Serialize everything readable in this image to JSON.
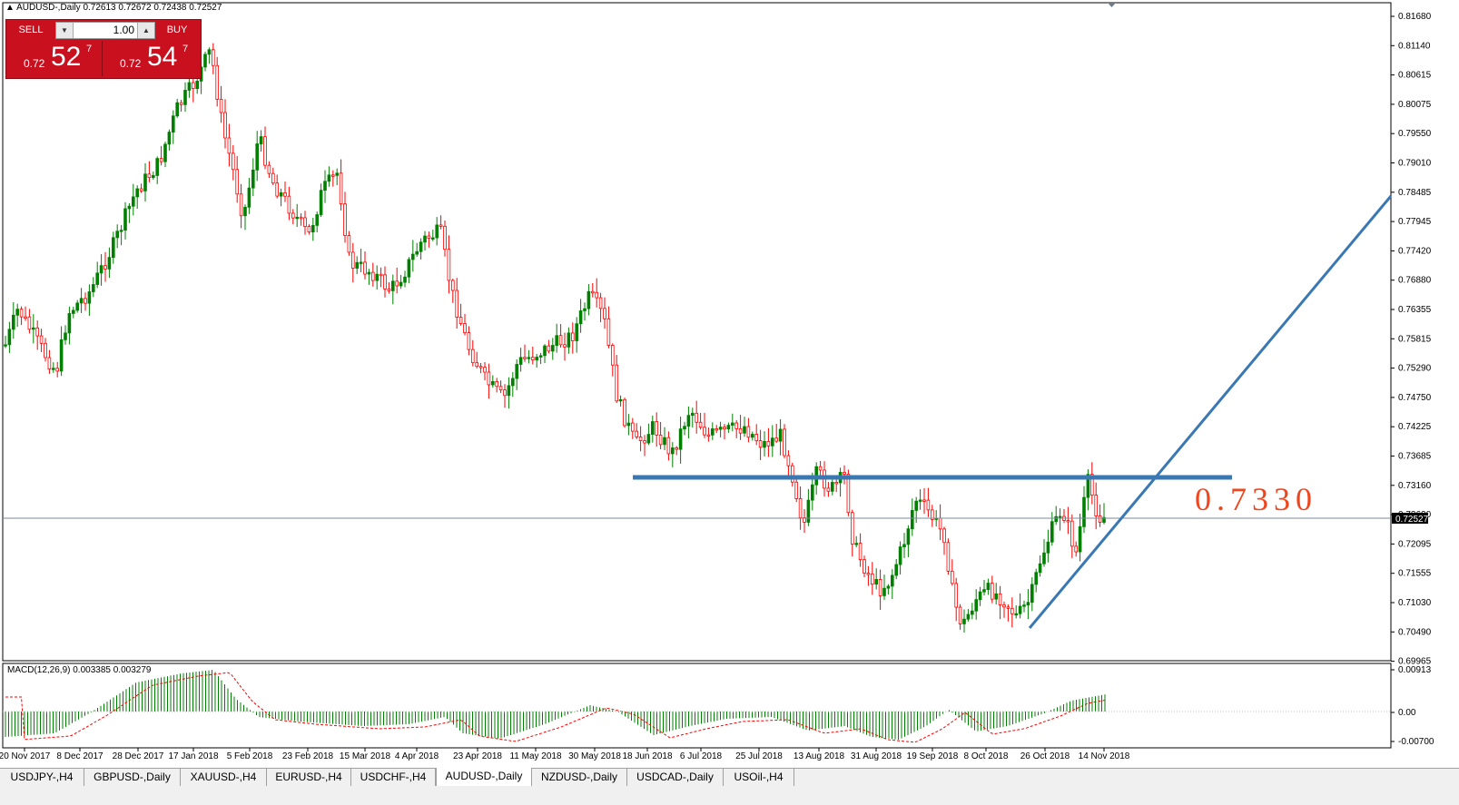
{
  "header": {
    "symbol_line": "AUDUSD-,Daily  0.72613 0.72672 0.72438 0.72527"
  },
  "trade_panel": {
    "sell_label": "SELL",
    "buy_label": "BUY",
    "lot_value": "1.00",
    "sell_price_prefix": "0.72",
    "sell_price_big": "52",
    "sell_price_sup": "7",
    "buy_price_prefix": "0.72",
    "buy_price_big": "54",
    "buy_price_sup": "7"
  },
  "annotation": {
    "level_label": "0.7330"
  },
  "macd": {
    "label": "MACD(12,26,9) 0.003385 0.003279"
  },
  "price_axis": {
    "ticks": [
      "0.81680",
      "0.81140",
      "0.80615",
      "0.80075",
      "0.79550",
      "0.79010",
      "0.78485",
      "0.77945",
      "0.77420",
      "0.76880",
      "0.76355",
      "0.75815",
      "0.75290",
      "0.74750",
      "0.74225",
      "0.73685",
      "0.73160",
      "0.72620",
      "0.72095",
      "0.71555",
      "0.71030",
      "0.70490",
      "0.69965"
    ],
    "current_price": "0.72527"
  },
  "macd_axis": {
    "ticks": [
      "0.00913",
      "0.00",
      "-0.00700"
    ]
  },
  "time_axis": {
    "ticks": [
      "20 Nov 2017",
      "8 Dec 2017",
      "28 Dec 2017",
      "17 Jan 2018",
      "5 Feb 2018",
      "23 Feb 2018",
      "15 Mar 2018",
      "4 Apr 2018",
      "23 Apr 2018",
      "11 May 2018",
      "30 May 2018",
      "18 Jun 2018",
      "6 Jul 2018",
      "25 Jul 2018",
      "13 Aug 2018",
      "31 Aug 2018",
      "19 Sep 2018",
      "8 Oct 2018",
      "26 Oct 2018",
      "14 Nov 2018"
    ]
  },
  "tabs": [
    {
      "label": "USDJPY-,H4"
    },
    {
      "label": "GBPUSD-,Daily"
    },
    {
      "label": "XAUUSD-,H4"
    },
    {
      "label": "EURUSD-,H4"
    },
    {
      "label": "USDCHF-,H4"
    },
    {
      "label": "AUDUSD-,Daily",
      "active": true
    },
    {
      "label": "NZDUSD-,Daily"
    },
    {
      "label": "USDCAD-,Daily"
    },
    {
      "label": "USOil-,H4"
    }
  ],
  "colors": {
    "bull": "#008000",
    "bear": "#ff0000",
    "trendline": "#3a78b4",
    "level_text": "#f0461e",
    "panel": "#c8101e"
  }
}
